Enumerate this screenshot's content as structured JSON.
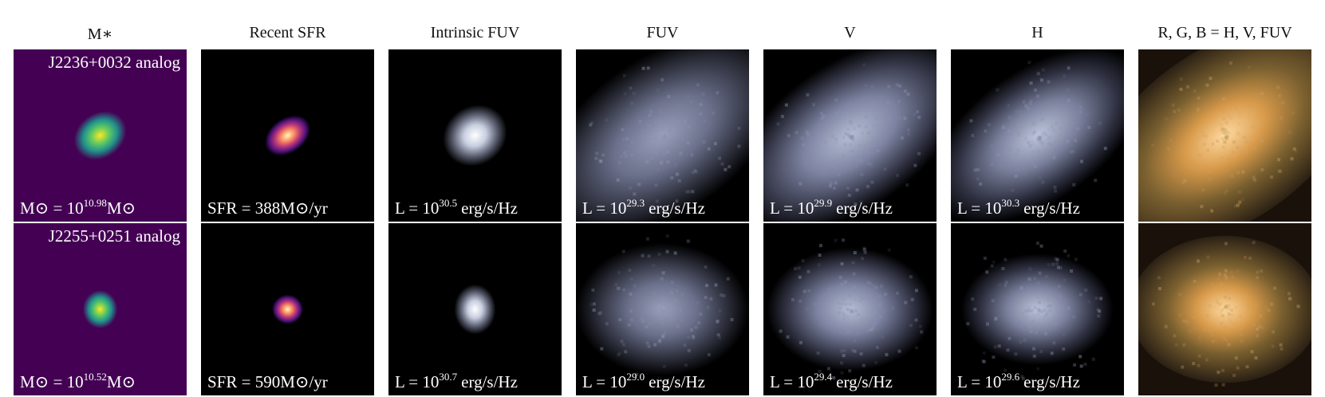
{
  "columns": [
    "M∗",
    "Recent SFR",
    "Intrinsic FUV",
    "FUV",
    "V",
    "H",
    "R, G, B = H, V, FUV"
  ],
  "rows": [
    {
      "label": "J2236+0032 analog",
      "panels": [
        {
          "pre": "M⊙ = 10",
          "exp": "10.98",
          "post": "M⊙"
        },
        {
          "pre": "SFR = 388M⊙/yr"
        },
        {
          "pre": "L = 10",
          "exp": "30.5",
          "post": "erg/s/Hz"
        },
        {
          "pre": "L = 10",
          "exp": "29.3",
          "post": "erg/s/Hz"
        },
        {
          "pre": "L = 10",
          "exp": "29.9",
          "post": "erg/s/Hz"
        },
        {
          "pre": "L = 10",
          "exp": "30.3",
          "post": "erg/s/Hz"
        }
      ]
    },
    {
      "label": "J2255+0251 analog",
      "panels": [
        {
          "pre": "M⊙ = 10",
          "exp": "10.52",
          "post": "M⊙"
        },
        {
          "pre": "SFR = 590M⊙/yr"
        },
        {
          "pre": "L = 10",
          "exp": "30.7",
          "post": "erg/s/Hz"
        },
        {
          "pre": "L = 10",
          "exp": "29.0",
          "post": "erg/s/Hz"
        },
        {
          "pre": "L = 10",
          "exp": "29.4",
          "post": "erg/s/Hz"
        },
        {
          "pre": "L = 10",
          "exp": "29.6",
          "post": "erg/s/Hz"
        }
      ]
    }
  ]
}
